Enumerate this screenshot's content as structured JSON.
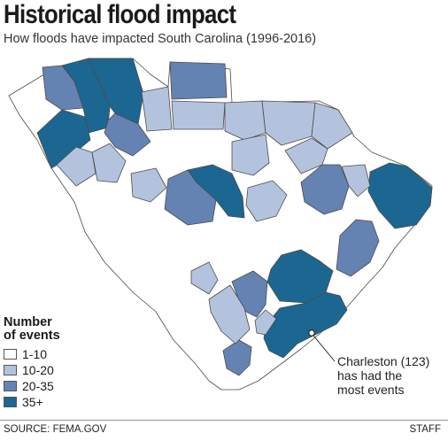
{
  "title": "Historical flood impact",
  "subtitle": "How floods have impacted South Carolina (1996-2016)",
  "legend": {
    "title_line1": "Number",
    "title_line2": "of events",
    "items": [
      {
        "label": "1-10",
        "color": "#ffffff"
      },
      {
        "label": "10-20",
        "color": "#b4c3dd"
      },
      {
        "label": "20-35",
        "color": "#6483b3"
      },
      {
        "label": "35+",
        "color": "#1c6791"
      }
    ]
  },
  "callout": {
    "line1": "Charleston (123)",
    "line2": "has had the",
    "line3": "most events"
  },
  "footer": {
    "source": "SOURCE:  FEMA.GOV",
    "credit": "STAFF"
  },
  "colors": {
    "low": "#ffffff",
    "mid_low": "#b4c3dd",
    "mid_high": "#6483b3",
    "high": "#1c6791",
    "border": "#4a4a4a"
  }
}
